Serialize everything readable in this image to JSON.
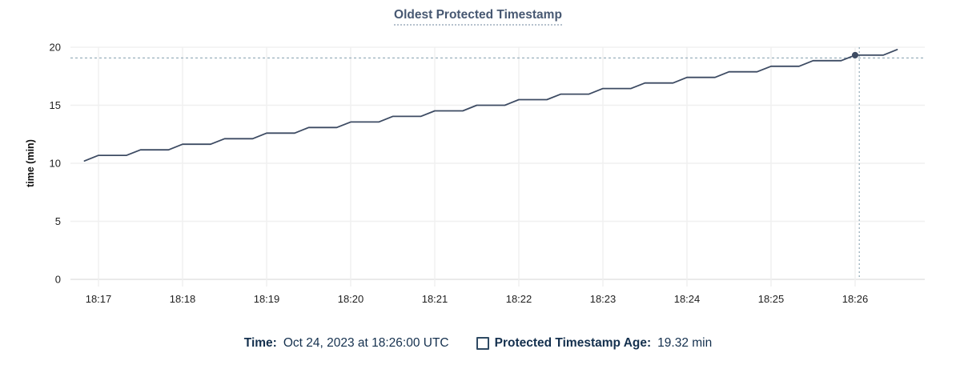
{
  "title": "Oldest Protected Timestamp",
  "y_axis": {
    "label": "time (min)",
    "ticks": [
      0,
      5,
      10,
      15,
      20
    ],
    "min": 0,
    "max": 20
  },
  "x_axis": {
    "ticks": [
      "18:17",
      "18:18",
      "18:19",
      "18:20",
      "18:21",
      "18:22",
      "18:23",
      "18:24",
      "18:25",
      "18:26"
    ]
  },
  "legend": {
    "time_label": "Time:",
    "time_value": "Oct 24, 2023 at 18:26:00 UTC",
    "series_label": "Protected Timestamp Age:",
    "series_value": "19.32 min"
  },
  "colors": {
    "line": "#3d4b63",
    "title": "#475872",
    "grid": "#f0f0f0",
    "axis": "#e4e4e4",
    "crosshair": "#9fb4c0",
    "legend_text": "#14304e",
    "tick_text": "#1f1f1f"
  },
  "chart_data": {
    "type": "line",
    "title": "Oldest Protected Timestamp",
    "xlabel": "",
    "ylabel": "time (min)",
    "ylim": [
      0,
      20
    ],
    "y_ticks": [
      0,
      5,
      10,
      15,
      20
    ],
    "x_tick_labels": [
      "18:17",
      "18:18",
      "18:19",
      "18:20",
      "18:21",
      "18:22",
      "18:23",
      "18:24",
      "18:25",
      "18:26"
    ],
    "grid": true,
    "legend_position": "bottom",
    "x_start_time": "18:16:50",
    "x_interval_seconds": 10,
    "series": [
      {
        "name": "Protected Timestamp Age",
        "unit": "min",
        "values": [
          10.2,
          10.68,
          10.68,
          10.68,
          11.16,
          11.16,
          11.16,
          11.64,
          11.64,
          11.64,
          12.12,
          12.12,
          12.12,
          12.6,
          12.6,
          12.6,
          13.08,
          13.08,
          13.08,
          13.56,
          13.56,
          13.56,
          14.04,
          14.04,
          14.04,
          14.52,
          14.52,
          14.52,
          15.0,
          15.0,
          15.0,
          15.48,
          15.48,
          15.48,
          15.96,
          15.96,
          15.96,
          16.44,
          16.44,
          16.44,
          16.92,
          16.92,
          16.92,
          17.4,
          17.4,
          17.4,
          17.88,
          17.88,
          17.88,
          18.36,
          18.36,
          18.36,
          18.84,
          18.84,
          18.84,
          19.32,
          19.32,
          19.32,
          19.8
        ]
      }
    ],
    "hover": {
      "time_label": "18:26",
      "full_time": "Oct 24, 2023 at 18:26:00 UTC",
      "point_offset_seconds": 540,
      "value": 19.32,
      "crosshair_x_offset_seconds": 543,
      "crosshair_y_value": 19.07
    }
  }
}
